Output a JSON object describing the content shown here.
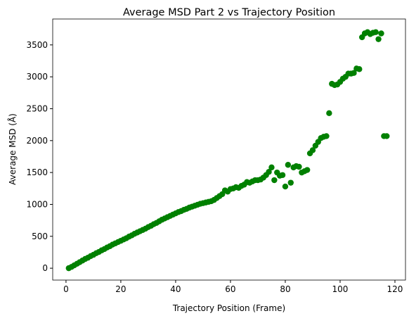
{
  "chart_data": {
    "type": "scatter",
    "title": "Average MSD Part 2 vs Trajectory Position",
    "xlabel": "Trajectory Position (Frame)",
    "ylabel": "Average MSD (Å)",
    "color": "#008000",
    "xlim": [
      -4.85,
      123.85
    ],
    "ylim": [
      -186,
      3906
    ],
    "xticks": [
      0,
      20,
      40,
      60,
      80,
      100,
      120
    ],
    "yticks": [
      0,
      500,
      1000,
      1500,
      2000,
      2500,
      3000,
      3500
    ],
    "x": [
      1,
      2,
      3,
      4,
      5,
      6,
      7,
      8,
      9,
      10,
      11,
      12,
      13,
      14,
      15,
      16,
      17,
      18,
      19,
      20,
      21,
      22,
      23,
      24,
      25,
      26,
      27,
      28,
      29,
      30,
      31,
      32,
      33,
      34,
      35,
      36,
      37,
      38,
      39,
      40,
      41,
      42,
      43,
      44,
      45,
      46,
      47,
      48,
      49,
      50,
      51,
      52,
      53,
      54,
      55,
      56,
      57,
      58,
      59,
      60,
      61,
      62,
      63,
      64,
      65,
      66,
      67,
      68,
      69,
      70,
      71,
      72,
      73,
      74,
      75,
      76,
      77,
      78,
      79,
      80,
      81,
      82,
      83,
      84,
      85,
      86,
      87,
      88,
      89,
      90,
      91,
      92,
      93,
      94,
      95,
      96,
      97,
      98,
      99,
      100,
      101,
      102,
      103,
      104,
      105,
      106,
      107,
      108,
      109,
      110,
      111,
      112,
      113,
      114,
      115,
      116,
      117
    ],
    "y": [
      0,
      20,
      45,
      70,
      95,
      120,
      145,
      165,
      190,
      210,
      235,
      255,
      280,
      300,
      325,
      345,
      370,
      390,
      410,
      430,
      450,
      470,
      495,
      515,
      540,
      560,
      580,
      600,
      620,
      645,
      665,
      690,
      710,
      735,
      760,
      780,
      800,
      820,
      840,
      860,
      880,
      895,
      915,
      930,
      950,
      965,
      980,
      995,
      1010,
      1020,
      1030,
      1040,
      1050,
      1070,
      1100,
      1130,
      1160,
      1220,
      1200,
      1240,
      1250,
      1270,
      1260,
      1290,
      1310,
      1350,
      1340,
      1360,
      1380,
      1380,
      1390,
      1420,
      1460,
      1510,
      1580,
      1380,
      1500,
      1450,
      1460,
      1280,
      1620,
      1340,
      1580,
      1600,
      1590,
      1500,
      1520,
      1540,
      1800,
      1850,
      1920,
      1980,
      2040,
      2060,
      2070,
      2430,
      2890,
      2870,
      2880,
      2920,
      2970,
      3000,
      3050,
      3050,
      3060,
      3130,
      3120,
      3620,
      3680,
      3700,
      3670,
      3690,
      3700,
      3590,
      3680,
      2070,
      2070
    ]
  }
}
